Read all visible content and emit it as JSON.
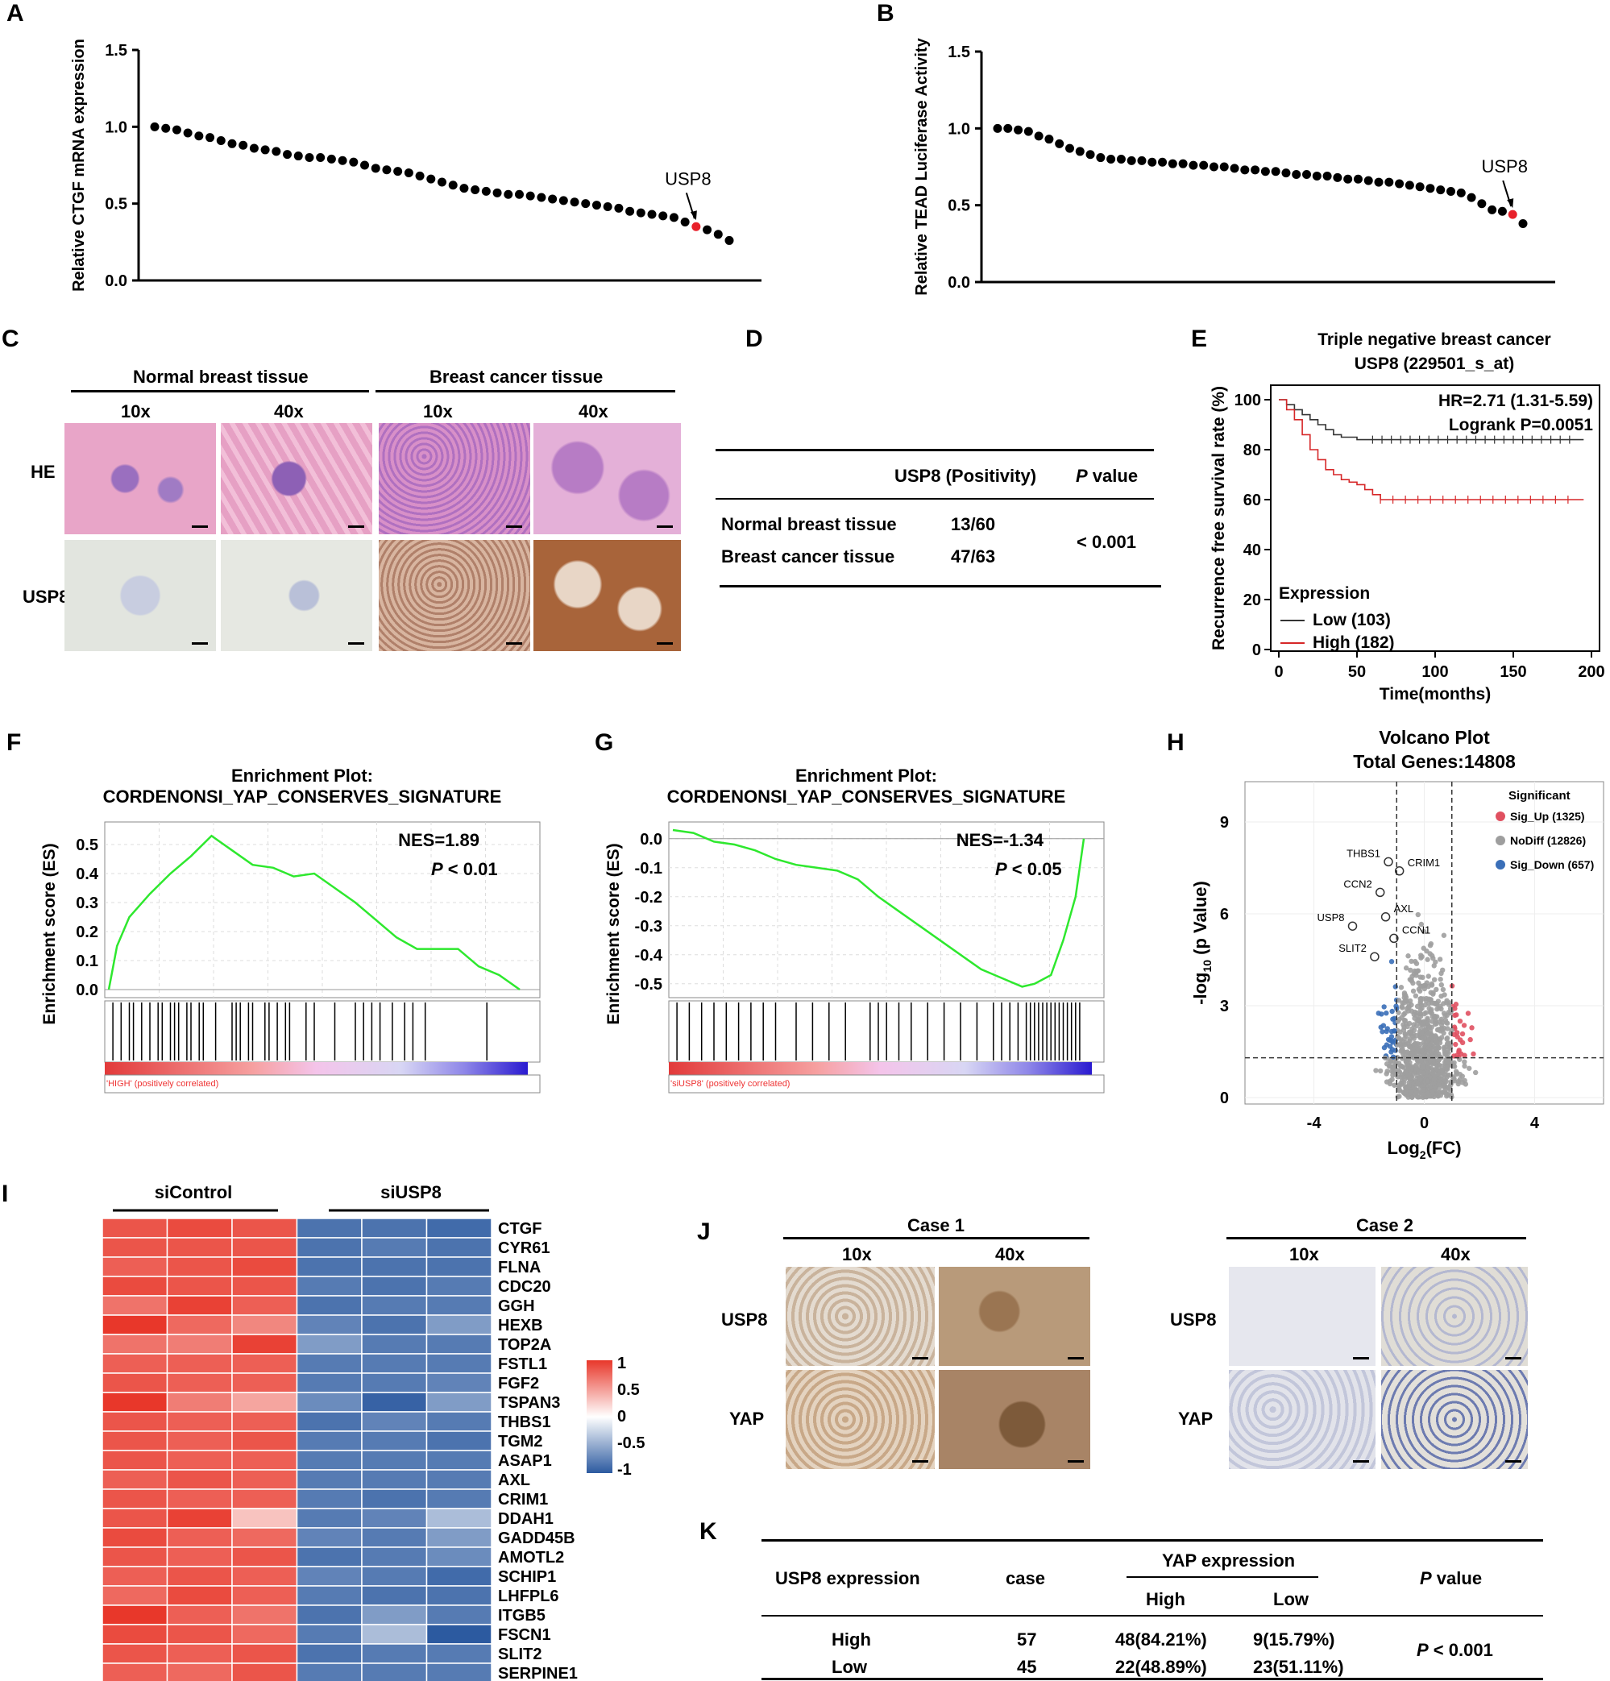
{
  "panels": {
    "A": "A",
    "B": "B",
    "C": "C",
    "D": "D",
    "E": "E",
    "F": "F",
    "G": "G",
    "H": "H",
    "I": "I",
    "J": "J",
    "K": "K"
  },
  "panel_a": {
    "ylabel": "Relative CTGF mRNA expression",
    "highlight": "USP8",
    "y_ticks": [
      "0.0",
      "0.5",
      "1.0",
      "1.5"
    ]
  },
  "panel_b": {
    "ylabel": "Relative TEAD Luciferase Activity",
    "highlight": "USP8",
    "y_ticks": [
      "0.0",
      "0.5",
      "1.0",
      "1.5"
    ]
  },
  "panel_c": {
    "group1": "Normal breast tissue",
    "group2": "Breast cancer tissue",
    "mag_10x": "10x",
    "mag_40x": "40x",
    "row_he": "HE",
    "row_usp8": "USP8"
  },
  "panel_d": {
    "col_usp8": "USP8 (Positivity)",
    "col_p_italic": "P",
    "col_p_rest": " value",
    "row1_label": "Normal breast tissue",
    "row1_value": "13/60",
    "row2_label": "Breast cancer tissue",
    "row2_value": "47/63",
    "p_value": "< 0.001"
  },
  "panel_e": {
    "title1": "Triple negative breast cancer",
    "title2": "USP8 (229501_s_at)",
    "hr": "HR=2.71 (1.31-5.59)",
    "logrank": "Logrank P=0.0051",
    "ylabel": "Recurrence free survival rate (%)",
    "xlabel": "Time(months)",
    "legend_title": "Expression",
    "legend_low": "Low (103)",
    "legend_high": "High (182)",
    "x_ticks": [
      "0",
      "50",
      "100",
      "150",
      "200"
    ],
    "y_ticks": [
      "0",
      "20",
      "40",
      "60",
      "80",
      "100"
    ]
  },
  "panel_f": {
    "title1": "Enrichment Plot:",
    "title2": "CORDENONSI_YAP_CONSERVES_SIGNATURE",
    "nes": "NES=1.89",
    "p_italic": "P",
    "p_rest": " < 0.01",
    "ylabel": "Enrichment score (ES)",
    "ranked_label": "'HIGH' (positively correlated)",
    "y_ticks": [
      "0.0",
      "0.1",
      "0.2",
      "0.3",
      "0.4",
      "0.5"
    ]
  },
  "panel_g": {
    "title1": "Enrichment Plot:",
    "title2": "CORDENONSI_YAP_CONSERVES_SIGNATURE",
    "nes": "NES=-1.34",
    "p_italic": "P",
    "p_rest": " < 0.05",
    "ylabel": "Enrichment score (ES)",
    "ranked_label": "'siUSP8' (positively correlated)",
    "y_ticks": [
      "0.0",
      "-0.1",
      "-0.2",
      "-0.3",
      "-0.4",
      "-0.5"
    ]
  },
  "panel_h": {
    "title1": "Volcano Plot",
    "title2": "Total Genes:14808",
    "legend_title": "Significant",
    "legend_up": "Sig_Up (1325)",
    "legend_nodiff": "NoDiff (12826)",
    "legend_down": "Sig_Down (657)",
    "ylabel_pre": "-log",
    "ylabel_sub": "10",
    "ylabel_post": " (p Value)",
    "xlabel_pre": "Log",
    "xlabel_sub": "2",
    "xlabel_post": "(FC)",
    "x_ticks": [
      "-4",
      "0",
      "4"
    ],
    "y_ticks": [
      "0",
      "3",
      "6",
      "9"
    ],
    "genes": [
      "THBS1",
      "CRIM1",
      "CCN2",
      "AXL",
      "USP8",
      "CCN1",
      "SLIT2"
    ]
  },
  "panel_i": {
    "group1": "siControl",
    "group2": "siUSP8",
    "scale": [
      "1",
      "0.5",
      "0",
      "-0.5",
      "-1"
    ],
    "genes": [
      "CTGF",
      "CYR61",
      "FLNA",
      "CDC20",
      "GGH",
      "HEXB",
      "TOP2A",
      "FSTL1",
      "FGF2",
      "TSPAN3",
      "THBS1",
      "TGM2",
      "ASAP1",
      "AXL",
      "CRIM1",
      "DDAH1",
      "GADD45B",
      "AMOTL2",
      "SCHIP1",
      "LHFPL6",
      "ITGB5",
      "FSCN1",
      "SLIT2",
      "SERPINE1"
    ]
  },
  "panel_j": {
    "case1": "Case 1",
    "case2": "Case 2",
    "mag_10x": "10x",
    "mag_40x": "40x",
    "row_usp8": "USP8",
    "row_yap": "YAP"
  },
  "panel_k": {
    "col_usp8": "USP8 expression",
    "col_case": "case",
    "col_yap": "YAP expression",
    "col_high": "High",
    "col_low": "Low",
    "col_p_italic": "P",
    "col_p_rest": " value",
    "row1_label": "High",
    "row1_case": "57",
    "row1_high": "48(84.21%)",
    "row1_low": "9(15.79%)",
    "row2_label": "Low",
    "row2_case": "45",
    "row2_high": "22(48.89%)",
    "row2_low": "23(51.11%)",
    "p_italic": "P",
    "p_rest": " < 0.001"
  },
  "chart_data": [
    {
      "type": "scatter",
      "panel": "A",
      "ylabel": "Relative CTGF mRNA expression",
      "ylim": [
        0,
        1.5
      ],
      "highlight_label": "USP8",
      "highlight_index": 49,
      "values": [
        1.0,
        0.99,
        0.98,
        0.96,
        0.94,
        0.93,
        0.91,
        0.89,
        0.88,
        0.86,
        0.85,
        0.84,
        0.82,
        0.81,
        0.8,
        0.8,
        0.79,
        0.78,
        0.77,
        0.75,
        0.73,
        0.72,
        0.71,
        0.7,
        0.68,
        0.66,
        0.64,
        0.62,
        0.6,
        0.59,
        0.58,
        0.57,
        0.56,
        0.56,
        0.55,
        0.54,
        0.53,
        0.52,
        0.51,
        0.5,
        0.49,
        0.48,
        0.47,
        0.45,
        0.44,
        0.43,
        0.42,
        0.41,
        0.38,
        0.35,
        0.33,
        0.3,
        0.26
      ]
    },
    {
      "type": "scatter",
      "panel": "B",
      "ylabel": "Relative TEAD Luciferase Activity",
      "ylim": [
        0,
        1.5
      ],
      "highlight_label": "USP8",
      "highlight_index": 50,
      "values": [
        1.0,
        1.0,
        0.99,
        0.98,
        0.95,
        0.93,
        0.9,
        0.87,
        0.85,
        0.83,
        0.81,
        0.8,
        0.8,
        0.79,
        0.79,
        0.78,
        0.78,
        0.77,
        0.77,
        0.76,
        0.76,
        0.75,
        0.75,
        0.74,
        0.73,
        0.73,
        0.72,
        0.72,
        0.71,
        0.7,
        0.7,
        0.69,
        0.69,
        0.68,
        0.67,
        0.67,
        0.66,
        0.65,
        0.65,
        0.64,
        0.63,
        0.62,
        0.61,
        0.6,
        0.59,
        0.58,
        0.55,
        0.51,
        0.47,
        0.46,
        0.44,
        0.38
      ]
    },
    {
      "type": "line",
      "panel": "E",
      "title": "Triple negative breast cancer USP8 (229501_s_at)",
      "xlabel": "Time(months)",
      "ylabel": "Recurrence free survival rate (%)",
      "xlim": [
        0,
        200
      ],
      "ylim": [
        0,
        100
      ],
      "series": [
        {
          "name": "Low (103)",
          "color": "#333333",
          "x": [
            0,
            5,
            10,
            15,
            20,
            25,
            30,
            35,
            40,
            45,
            50,
            60,
            100,
            150,
            195
          ],
          "y": [
            100,
            98,
            96,
            94,
            92,
            90,
            88,
            86,
            85,
            85,
            84,
            84,
            84,
            84,
            84
          ]
        },
        {
          "name": "High (182)",
          "color": "#d62728",
          "x": [
            0,
            5,
            10,
            15,
            20,
            25,
            30,
            35,
            40,
            45,
            50,
            55,
            60,
            65,
            100,
            150,
            195
          ],
          "y": [
            100,
            96,
            92,
            86,
            80,
            76,
            72,
            70,
            68,
            67,
            66,
            64,
            62,
            60,
            60,
            60,
            60
          ]
        }
      ]
    },
    {
      "type": "line",
      "panel": "F",
      "title": "CORDENONSI_YAP_CONSERVES_SIGNATURE",
      "ylabel": "Enrichment score (ES)",
      "ylim": [
        0,
        0.55
      ],
      "x": [
        0,
        0.02,
        0.05,
        0.1,
        0.15,
        0.2,
        0.25,
        0.3,
        0.35,
        0.4,
        0.45,
        0.5,
        0.55,
        0.6,
        0.65,
        0.7,
        0.75,
        0.8,
        0.85,
        0.9,
        0.95,
        1.0
      ],
      "y": [
        0,
        0.15,
        0.25,
        0.33,
        0.4,
        0.46,
        0.53,
        0.48,
        0.43,
        0.42,
        0.39,
        0.4,
        0.35,
        0.3,
        0.24,
        0.18,
        0.14,
        0.14,
        0.14,
        0.08,
        0.05,
        0.0
      ]
    },
    {
      "type": "line",
      "panel": "G",
      "title": "CORDENONSI_YAP_CONSERVES_SIGNATURE",
      "ylabel": "Enrichment score (ES)",
      "ylim": [
        -0.52,
        0.03
      ],
      "x": [
        0,
        0.05,
        0.1,
        0.15,
        0.2,
        0.25,
        0.3,
        0.35,
        0.4,
        0.45,
        0.5,
        0.55,
        0.6,
        0.65,
        0.7,
        0.75,
        0.8,
        0.85,
        0.88,
        0.92,
        0.95,
        0.98,
        1.0
      ],
      "y": [
        0.03,
        0.02,
        -0.01,
        -0.02,
        -0.04,
        -0.07,
        -0.09,
        -0.1,
        -0.11,
        -0.14,
        -0.2,
        -0.25,
        -0.3,
        -0.35,
        -0.4,
        -0.45,
        -0.48,
        -0.51,
        -0.5,
        -0.47,
        -0.35,
        -0.2,
        0.0
      ]
    },
    {
      "type": "scatter",
      "panel": "H",
      "title": "Volcano Plot",
      "xlabel": "Log2(FC)",
      "ylabel": "-log10 (p Value)",
      "xlim": [
        -6.5,
        6.5
      ],
      "ylim": [
        0,
        10
      ],
      "thresholds": {
        "fc": [
          -1,
          1
        ],
        "p": 1.3
      },
      "series": [
        {
          "name": "Sig_Up",
          "count": 1325,
          "color": "#e05060"
        },
        {
          "name": "NoDiff",
          "count": 12826,
          "color": "#9e9e9e"
        },
        {
          "name": "Sig_Down",
          "count": 657,
          "color": "#3a6fb8"
        }
      ],
      "labeled_genes": [
        {
          "name": "THBS1",
          "x": -1.3,
          "y": 7.7
        },
        {
          "name": "CRIM1",
          "x": -0.9,
          "y": 7.4
        },
        {
          "name": "CCN2",
          "x": -1.6,
          "y": 6.7
        },
        {
          "name": "AXL",
          "x": -1.4,
          "y": 5.9
        },
        {
          "name": "USP8",
          "x": -2.6,
          "y": 5.6
        },
        {
          "name": "CCN1",
          "x": -1.1,
          "y": 5.2
        },
        {
          "name": "SLIT2",
          "x": -1.8,
          "y": 4.6
        }
      ]
    },
    {
      "type": "heatmap",
      "panel": "I",
      "columns": [
        "siControl",
        "siControl",
        "siControl",
        "siUSP8",
        "siUSP8",
        "siUSP8"
      ],
      "rows": [
        "CTGF",
        "CYR61",
        "FLNA",
        "CDC20",
        "GGH",
        "HEXB",
        "TOP2A",
        "FSTL1",
        "FGF2",
        "TSPAN3",
        "THBS1",
        "TGM2",
        "ASAP1",
        "AXL",
        "CRIM1",
        "DDAH1",
        "GADD45B",
        "AMOTL2",
        "SCHIP1",
        "LHFPL6",
        "ITGB5",
        "FSCN1",
        "SLIT2",
        "SERPINE1"
      ],
      "scale": [
        -1,
        1
      ],
      "values": [
        [
          0.85,
          0.9,
          0.85,
          -0.85,
          -0.85,
          -0.9
        ],
        [
          0.85,
          0.85,
          0.85,
          -0.85,
          -0.8,
          -0.85
        ],
        [
          0.8,
          0.85,
          0.9,
          -0.85,
          -0.85,
          -0.85
        ],
        [
          0.9,
          0.85,
          0.85,
          -0.8,
          -0.85,
          -0.8
        ],
        [
          0.7,
          0.95,
          0.8,
          -0.85,
          -0.8,
          -0.8
        ],
        [
          1.0,
          0.75,
          0.6,
          -0.75,
          -0.85,
          -0.6
        ],
        [
          0.7,
          0.65,
          0.95,
          -0.6,
          -0.8,
          -0.8
        ],
        [
          0.8,
          0.8,
          0.8,
          -0.8,
          -0.8,
          -0.8
        ],
        [
          0.85,
          0.8,
          0.8,
          -0.8,
          -0.8,
          -0.75
        ],
        [
          1.0,
          0.65,
          0.45,
          -0.7,
          -0.95,
          -0.6
        ],
        [
          0.85,
          0.8,
          0.8,
          -0.85,
          -0.75,
          -0.8
        ],
        [
          0.85,
          0.8,
          0.85,
          -0.8,
          -0.8,
          -0.85
        ],
        [
          0.85,
          0.8,
          0.8,
          -0.8,
          -0.8,
          -0.8
        ],
        [
          0.8,
          0.85,
          0.8,
          -0.8,
          -0.8,
          -0.8
        ],
        [
          0.85,
          0.8,
          0.8,
          -0.8,
          -0.85,
          -0.8
        ],
        [
          0.85,
          0.95,
          0.3,
          -0.8,
          -0.75,
          -0.4
        ],
        [
          0.9,
          0.8,
          0.75,
          -0.75,
          -0.8,
          -0.6
        ],
        [
          0.85,
          0.8,
          0.85,
          -0.85,
          -0.8,
          -0.7
        ],
        [
          0.8,
          0.85,
          0.8,
          -0.75,
          -0.8,
          -0.9
        ],
        [
          0.75,
          0.9,
          0.8,
          -0.8,
          -0.85,
          -0.85
        ],
        [
          1.0,
          0.8,
          0.7,
          -0.85,
          -0.6,
          -0.8
        ],
        [
          0.9,
          0.85,
          0.75,
          -0.8,
          -0.4,
          -1.0
        ],
        [
          0.85,
          0.8,
          0.85,
          -0.85,
          -0.8,
          -0.8
        ],
        [
          0.8,
          0.75,
          0.85,
          -0.8,
          -0.8,
          -0.8
        ]
      ]
    }
  ],
  "colors": {
    "highlight_red": "#e8202a",
    "km_low": "#333333",
    "km_high": "#d62728",
    "gsea_curve": "#2ee82e",
    "sig_up": "#e05060",
    "nodiff": "#9e9e9e",
    "sig_down": "#3a6fb8",
    "heat_high": "#e8372a",
    "heat_low": "#2c5aa0"
  }
}
